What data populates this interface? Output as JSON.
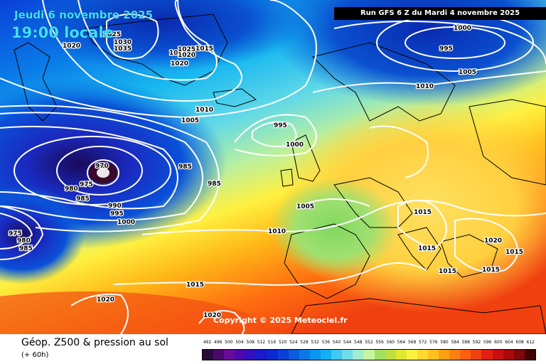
{
  "header": {
    "date": "Jeudi 6 novembre 2025",
    "time": "19:00 locale",
    "run": "Run GFS 6 Z du Mardi 4 novembre 2025"
  },
  "copyright": "Copyright © 2025 Meteociel.fr",
  "footer": {
    "title": "Géop. Z500 & pression au sol",
    "subtitle": "(+ 60h)"
  },
  "legend": {
    "values": [
      "492",
      "496",
      "500",
      "504",
      "508",
      "512",
      "516",
      "520",
      "524",
      "528",
      "532",
      "536",
      "540",
      "544",
      "548",
      "552",
      "556",
      "560",
      "564",
      "568",
      "572",
      "576",
      "580",
      "584",
      "588",
      "592",
      "596",
      "600",
      "604",
      "608",
      "612"
    ],
    "colors": [
      "#2a0a3a",
      "#4a0a6a",
      "#6a0a9a",
      "#4a0ab0",
      "#3010c0",
      "#1a1acc",
      "#0a2ad0",
      "#0a40d8",
      "#0a5ce0",
      "#0a78e8",
      "#0a96f0",
      "#10b0f4",
      "#40c8f0",
      "#70dce8",
      "#a0ecd0",
      "#c8f4a0",
      "#a0e060",
      "#c0e040",
      "#e0e830",
      "#fff040",
      "#ffd830",
      "#ffc020",
      "#ffa010",
      "#ff8010",
      "#ff6010",
      "#f04010",
      "#e02010",
      "#c81010",
      "#a80a0a",
      "#800808",
      "#400404"
    ]
  },
  "isobars": [
    {
      "value": "1020",
      "lbl": "a"
    },
    {
      "value": "1035",
      "lbl": "b"
    },
    {
      "value": "1030",
      "lbl": "c"
    },
    {
      "value": "1025",
      "lbl": "d"
    },
    {
      "value": "1030",
      "lbl": "e"
    },
    {
      "value": "1020",
      "lbl": "f"
    },
    {
      "value": "1025",
      "lbl": "g"
    },
    {
      "value": "1015",
      "lbl": "h"
    },
    {
      "value": "1020",
      "lbl": "i"
    },
    {
      "value": "1010",
      "lbl": "j"
    },
    {
      "value": "1005",
      "lbl": "k"
    },
    {
      "value": "995",
      "lbl": "l"
    },
    {
      "value": "1000",
      "lbl": "m"
    },
    {
      "value": "970",
      "lbl": "n"
    },
    {
      "value": "985",
      "lbl": "o"
    },
    {
      "value": "985",
      "lbl": "p"
    },
    {
      "value": "975",
      "lbl": "q"
    },
    {
      "value": "980",
      "lbl": "r"
    },
    {
      "value": "985",
      "lbl": "s"
    },
    {
      "value": "990",
      "lbl": "t"
    },
    {
      "value": "995",
      "lbl": "u"
    },
    {
      "value": "1000",
      "lbl": "v"
    },
    {
      "value": "975",
      "lbl": "w"
    },
    {
      "value": "980",
      "lbl": "x"
    },
    {
      "value": "985",
      "lbl": "y"
    },
    {
      "value": "1005",
      "lbl": "z"
    },
    {
      "value": "1010",
      "lbl": "aa"
    },
    {
      "value": "1015",
      "lbl": "ab"
    },
    {
      "value": "1020",
      "lbl": "ac"
    },
    {
      "value": "1020",
      "lbl": "ad"
    },
    {
      "value": "1000",
      "lbl": "ae"
    },
    {
      "value": "995",
      "lbl": "af"
    },
    {
      "value": "1005",
      "lbl": "ag"
    },
    {
      "value": "1010",
      "lbl": "ah"
    },
    {
      "value": "1015",
      "lbl": "ai"
    },
    {
      "value": "1020",
      "lbl": "aj"
    },
    {
      "value": "1015",
      "lbl": "ak"
    },
    {
      "value": "1015",
      "lbl": "al"
    },
    {
      "value": "1015",
      "lbl": "am"
    },
    {
      "value": "1015",
      "lbl": "an"
    },
    {
      "value": "1015",
      "lbl": "ao"
    },
    {
      "value": "1020",
      "lbl": "ap"
    }
  ]
}
